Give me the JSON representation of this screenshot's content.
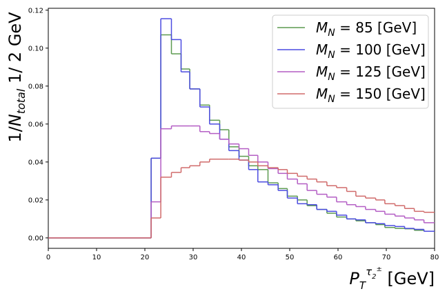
{
  "chart_data": {
    "type": "histogram",
    "x_label": "PTτ2± [GeV]",
    "y_label": "1/Ntotal 1/ 2 GeV",
    "bins": [
      0,
      21.3,
      23.3,
      25.5,
      27.5,
      29.3,
      31.4,
      33.4,
      35.5,
      37.4,
      39.5,
      41.5,
      43.4,
      45.5,
      47.6,
      49.5,
      51.6,
      53.6,
      55.6,
      57.7,
      59.7,
      61.8,
      63.7,
      65.7,
      67.8,
      69.7,
      71.8,
      73.8,
      75.8,
      77.8,
      80
    ],
    "series": [
      {
        "name": "MN = 85 [GeV]",
        "color": "#5b9a4f",
        "values": [
          0,
          0.042,
          0.107,
          0.097,
          0.089,
          0.0785,
          0.07,
          0.062,
          0.057,
          0.048,
          0.043,
          0.038,
          0.036,
          0.029,
          0.026,
          0.022,
          0.02,
          0.017,
          0.015,
          0.013,
          0.011,
          0.01,
          0.009,
          0.008,
          0.007,
          0.0055,
          0.005,
          0.0048,
          0.004,
          0.0035
        ]
      },
      {
        "name": "MN = 100 [GeV]",
        "color": "#4a4ae0",
        "values": [
          0,
          0.042,
          0.1155,
          0.1045,
          0.0875,
          0.0785,
          0.069,
          0.06,
          0.052,
          0.046,
          0.041,
          0.036,
          0.0295,
          0.028,
          0.025,
          0.021,
          0.018,
          0.0175,
          0.015,
          0.014,
          0.012,
          0.01,
          0.0095,
          0.008,
          0.0075,
          0.0065,
          0.006,
          0.005,
          0.0045,
          0.0035
        ]
      },
      {
        "name": "MN = 125 [GeV]",
        "color": "#b35cc4",
        "values": [
          0,
          0.019,
          0.0575,
          0.059,
          0.059,
          0.059,
          0.056,
          0.055,
          0.052,
          0.0495,
          0.047,
          0.0435,
          0.04,
          0.0365,
          0.034,
          0.031,
          0.0285,
          0.025,
          0.023,
          0.0215,
          0.019,
          0.0175,
          0.0165,
          0.015,
          0.014,
          0.0125,
          0.0115,
          0.0105,
          0.0095,
          0.008
        ]
      },
      {
        "name": "MN = 150 [GeV]",
        "color": "#d06a6a",
        "values": [
          0,
          0.0105,
          0.032,
          0.0345,
          0.037,
          0.038,
          0.04,
          0.0415,
          0.0415,
          0.0415,
          0.041,
          0.04,
          0.038,
          0.037,
          0.036,
          0.034,
          0.0325,
          0.031,
          0.0295,
          0.0275,
          0.0265,
          0.0245,
          0.022,
          0.021,
          0.02,
          0.018,
          0.017,
          0.0155,
          0.014,
          0.0135
        ]
      }
    ],
    "xlim": [
      0,
      80
    ],
    "xticks": [
      0,
      10,
      20,
      30,
      40,
      50,
      60,
      70,
      80
    ],
    "ylim": [
      -0.0055,
      0.121
    ],
    "yticks": [
      {
        "value": 0,
        "label": "0.00"
      },
      0.02,
      0.04,
      0.06,
      0.08,
      {
        "value": 0.1,
        "label": "0.10"
      },
      0.12
    ],
    "legend": "upper right"
  }
}
